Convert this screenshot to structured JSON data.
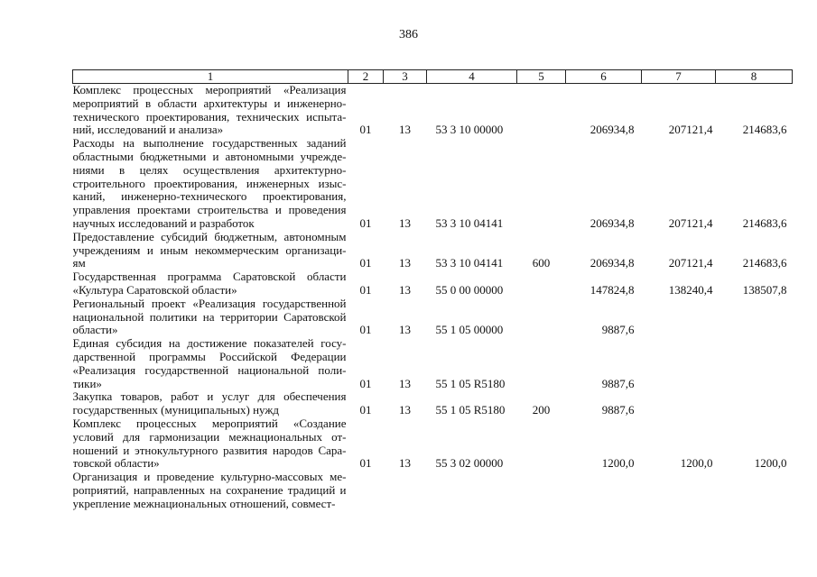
{
  "page_number": "386",
  "table": {
    "headers": [
      "1",
      "2",
      "3",
      "4",
      "5",
      "6",
      "7",
      "8"
    ],
    "rows": [
      {
        "lines": [
          "Комплекс процессных мероприятий «Реализация",
          "мероприятий в области архитектуры и инженерно-",
          "технического проектирования, технических испыта-",
          "ний, исследований и анализа»"
        ],
        "rz": "01",
        "prz": "13",
        "csr": "53 3 10 00000",
        "vr": "",
        "y1": "206934,8",
        "y2": "207121,4",
        "y3": "214683,6"
      },
      {
        "lines": [
          "Расходы на выполнение государственных заданий",
          "областными бюджетными и автономными учрежде-",
          "ниями в целях осуществления архитектурно-",
          "строительного проектирования, инженерных изыс-",
          "каний, инженерно-технического проектирования,",
          "управления проектами строительства и проведения",
          "научных исследований и разработок"
        ],
        "rz": "01",
        "prz": "13",
        "csr": "53 3 10 04141",
        "vr": "",
        "y1": "206934,8",
        "y2": "207121,4",
        "y3": "214683,6"
      },
      {
        "lines": [
          "Предоставление субсидий бюджетным, автономным",
          "учреждениям и иным некоммерческим организаци-",
          "ям"
        ],
        "rz": "01",
        "prz": "13",
        "csr": "53 3 10 04141",
        "vr": "600",
        "y1": "206934,8",
        "y2": "207121,4",
        "y3": "214683,6"
      },
      {
        "lines": [
          "Государственная программа Саратовской области",
          "«Культура Саратовской области»"
        ],
        "rz": "01",
        "prz": "13",
        "csr": "55 0 00 00000",
        "vr": "",
        "y1": "147824,8",
        "y2": "138240,4",
        "y3": "138507,8"
      },
      {
        "lines": [
          "Региональный проект «Реализация государственной",
          "национальной политики на территории Саратовской",
          "области»"
        ],
        "rz": "01",
        "prz": "13",
        "csr": "55 1 05 00000",
        "vr": "",
        "y1": "9887,6",
        "y2": "",
        "y3": ""
      },
      {
        "lines": [
          "Единая субсидия на достижение показателей госу-",
          "дарственной программы Российской Федерации",
          "«Реализация государственной национальной поли-",
          "тики»"
        ],
        "rz": "01",
        "prz": "13",
        "csr": "55 1 05 R5180",
        "vr": "",
        "y1": "9887,6",
        "y2": "",
        "y3": ""
      },
      {
        "lines": [
          "Закупка товаров, работ и услуг для обеспечения",
          "государственных (муниципальных) нужд"
        ],
        "rz": "01",
        "prz": "13",
        "csr": "55 1 05 R5180",
        "vr": "200",
        "y1": "9887,6",
        "y2": "",
        "y3": ""
      },
      {
        "lines": [
          "Комплекс процессных мероприятий «Создание",
          "условий для гармонизации межнациональных от-",
          "ношений и этнокультурного развития народов Сара-",
          "товской области»"
        ],
        "rz": "01",
        "prz": "13",
        "csr": "55 3 02 00000",
        "vr": "",
        "y1": "1200,0",
        "y2": "1200,0",
        "y3": "1200,0"
      },
      {
        "lines": [
          "Организация и проведение культурно-массовых ме-",
          "роприятий, направленных на сохранение традиций и",
          "укрепление межнациональных отношений, совмест-"
        ],
        "rz": "",
        "prz": "",
        "csr": "",
        "vr": "",
        "y1": "",
        "y2": "",
        "y3": ""
      }
    ]
  }
}
